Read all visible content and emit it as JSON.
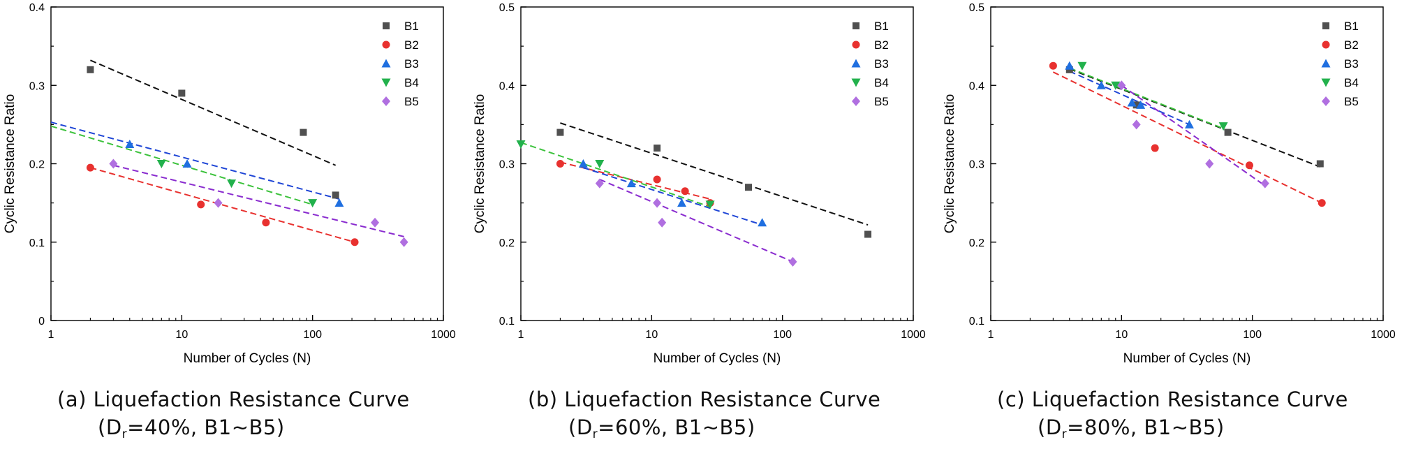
{
  "legend_markers": {
    "B1": "square",
    "B2": "circle",
    "B3": "triangle-up",
    "B4": "triangle-down",
    "B5": "diamond"
  },
  "colors": {
    "B1": "#505050",
    "B2": "#e8312f",
    "B3": "#1f6fe0",
    "B4": "#22b14c",
    "B5": "#b06fe0"
  },
  "fit_colors": {
    "B1": "#111111",
    "B2": "#e8312f",
    "B3": "#1f46d6",
    "B4": "#3cc23c",
    "B5": "#8a2ccf"
  },
  "chart_data": [
    {
      "type": "scatter",
      "xlabel": "Number of Cycles (N)",
      "ylabel": "Cyclic Resistance Ratio",
      "xscale": "log",
      "xlim": [
        1,
        1000
      ],
      "ylim": [
        0,
        0.4
      ],
      "xticks": [
        "1",
        "10",
        "100",
        "1000"
      ],
      "yticks": [
        "0",
        "0.1",
        "0.2",
        "0.3",
        "0.4"
      ],
      "legend": "top-right",
      "series": [
        {
          "name": "B1",
          "points": [
            [
              2,
              0.32
            ],
            [
              10,
              0.29
            ],
            [
              85,
              0.24
            ],
            [
              150,
              0.16
            ]
          ],
          "fit": [
            [
              2,
              0.332
            ],
            [
              150,
              0.198
            ]
          ]
        },
        {
          "name": "B2",
          "points": [
            [
              2,
              0.195
            ],
            [
              14,
              0.148
            ],
            [
              44,
              0.125
            ],
            [
              210,
              0.1
            ]
          ],
          "fit": [
            [
              2,
              0.195
            ],
            [
              210,
              0.1
            ]
          ]
        },
        {
          "name": "B3",
          "points": [
            [
              4,
              0.225
            ],
            [
              11,
              0.2
            ],
            [
              160,
              0.15
            ]
          ],
          "fit": [
            [
              1,
              0.253
            ],
            [
              160,
              0.155
            ]
          ]
        },
        {
          "name": "B4",
          "points": [
            [
              7,
              0.2
            ],
            [
              24,
              0.175
            ],
            [
              100,
              0.15
            ]
          ],
          "fit": [
            [
              1,
              0.248
            ],
            [
              100,
              0.148
            ]
          ]
        },
        {
          "name": "B5",
          "points": [
            [
              3,
              0.2
            ],
            [
              19,
              0.15
            ],
            [
              300,
              0.125
            ],
            [
              500,
              0.1
            ]
          ],
          "fit": [
            [
              3,
              0.198
            ],
            [
              500,
              0.107
            ]
          ]
        }
      ]
    },
    {
      "type": "scatter",
      "xlabel": "Number of Cycles (N)",
      "ylabel": "Cyclic Resistance Ratio",
      "xscale": "log",
      "xlim": [
        1,
        1000
      ],
      "ylim": [
        0.1,
        0.5
      ],
      "xticks": [
        "1",
        "10",
        "100",
        "1000"
      ],
      "yticks": [
        "0.1",
        "0.2",
        "0.3",
        "0.4",
        "0.5"
      ],
      "legend": "top-right",
      "series": [
        {
          "name": "B1",
          "points": [
            [
              2,
              0.34
            ],
            [
              11,
              0.32
            ],
            [
              55,
              0.27
            ],
            [
              450,
              0.21
            ]
          ],
          "fit": [
            [
              2,
              0.352
            ],
            [
              450,
              0.222
            ]
          ]
        },
        {
          "name": "B2",
          "points": [
            [
              2,
              0.3
            ],
            [
              11,
              0.28
            ],
            [
              18,
              0.265
            ],
            [
              28,
              0.25
            ]
          ],
          "fit": [
            [
              2,
              0.302
            ],
            [
              28,
              0.255
            ]
          ]
        },
        {
          "name": "B3",
          "points": [
            [
              3,
              0.3
            ],
            [
              7,
              0.275
            ],
            [
              17,
              0.25
            ],
            [
              70,
              0.225
            ]
          ],
          "fit": [
            [
              3,
              0.295
            ],
            [
              70,
              0.222
            ]
          ]
        },
        {
          "name": "B4",
          "points": [
            [
              1,
              0.325
            ],
            [
              4,
              0.3
            ],
            [
              28,
              0.248
            ]
          ],
          "fit": [
            [
              1,
              0.327
            ],
            [
              28,
              0.245
            ]
          ]
        },
        {
          "name": "B5",
          "points": [
            [
              4,
              0.275
            ],
            [
              11,
              0.25
            ],
            [
              12,
              0.225
            ],
            [
              120,
              0.175
            ]
          ],
          "fit": [
            [
              4,
              0.28
            ],
            [
              120,
              0.175
            ]
          ]
        }
      ]
    },
    {
      "type": "scatter",
      "xlabel": "Number of Cycles (N)",
      "ylabel": "Cyclic Resistance Ratio",
      "xscale": "log",
      "xlim": [
        1,
        1000
      ],
      "ylim": [
        0.1,
        0.5
      ],
      "xticks": [
        "1",
        "10",
        "100",
        "1000"
      ],
      "yticks": [
        "0.1",
        "0.2",
        "0.3",
        "0.4",
        "0.5"
      ],
      "legend": "top-right",
      "series": [
        {
          "name": "B1",
          "points": [
            [
              4,
              0.42
            ],
            [
              13,
              0.375
            ],
            [
              65,
              0.34
            ],
            [
              330,
              0.3
            ]
          ],
          "fit": [
            [
              4,
              0.421
            ],
            [
              330,
              0.296
            ]
          ]
        },
        {
          "name": "B2",
          "points": [
            [
              3,
              0.425
            ],
            [
              18,
              0.32
            ],
            [
              95,
              0.298
            ],
            [
              340,
              0.25
            ]
          ],
          "fit": [
            [
              3,
              0.417
            ],
            [
              340,
              0.25
            ]
          ]
        },
        {
          "name": "B3",
          "points": [
            [
              4,
              0.425
            ],
            [
              7,
              0.4
            ],
            [
              12,
              0.378
            ],
            [
              14,
              0.375
            ],
            [
              33,
              0.35
            ]
          ],
          "fit": [
            [
              4,
              0.418
            ],
            [
              33,
              0.35
            ]
          ]
        },
        {
          "name": "B4",
          "points": [
            [
              5,
              0.425
            ],
            [
              9,
              0.4
            ],
            [
              60,
              0.348
            ]
          ],
          "fit": [
            [
              4,
              0.422
            ],
            [
              60,
              0.345
            ]
          ]
        },
        {
          "name": "B5",
          "points": [
            [
              10,
              0.4
            ],
            [
              13,
              0.35
            ],
            [
              47,
              0.3
            ],
            [
              125,
              0.275
            ]
          ],
          "fit": [
            [
              10,
              0.4
            ],
            [
              125,
              0.272
            ]
          ]
        }
      ]
    }
  ],
  "captions": [
    {
      "line1": "(a) Liquefaction Resistance Curve",
      "pre": "(D",
      "sub": "r",
      "post": "=40%,  B1~B5)"
    },
    {
      "line1": "(b) Liquefaction Resistance Curve",
      "pre": "(D",
      "sub": "r",
      "post": "=60%,  B1~B5)"
    },
    {
      "line1": "(c) Liquefaction Resistance Curve",
      "pre": "(D",
      "sub": "r",
      "post": "=80%,  B1~B5)"
    }
  ]
}
